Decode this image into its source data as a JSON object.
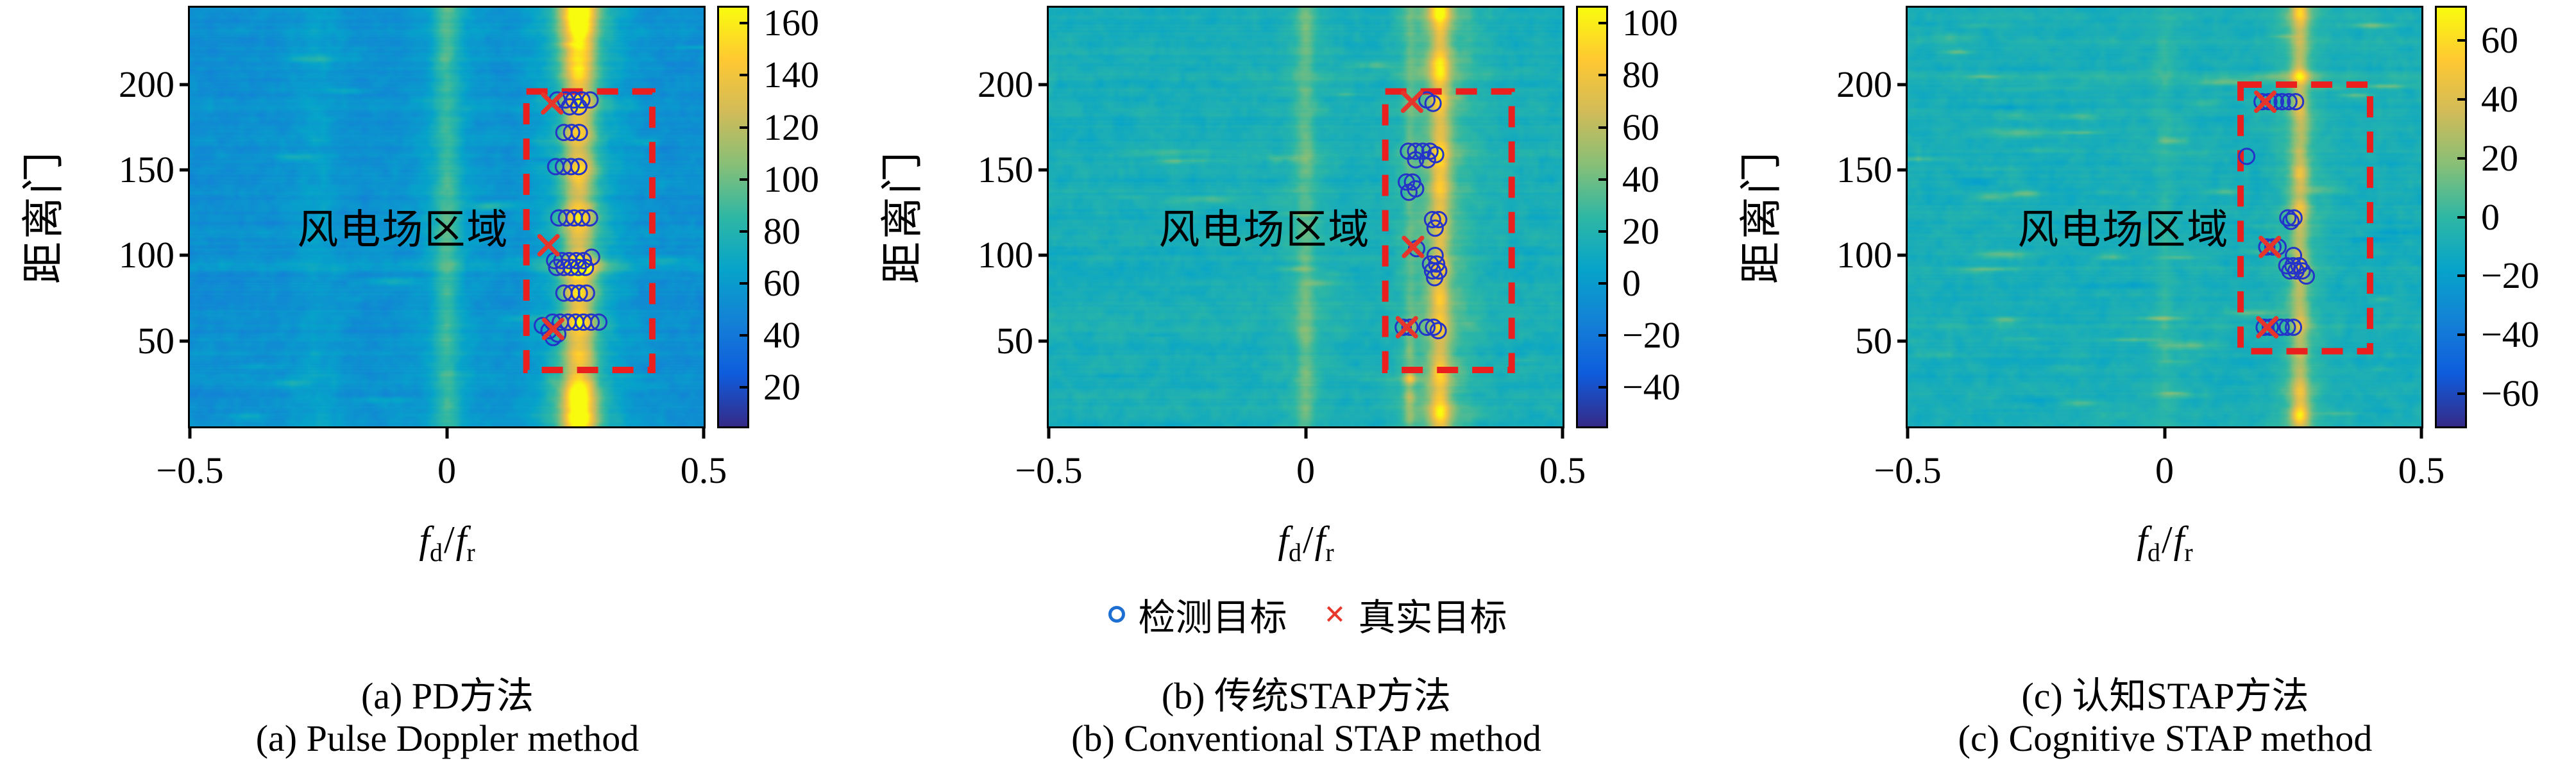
{
  "figure": {
    "ylabel": "距离门",
    "xlabel": {
      "f1": "f",
      "sub1": "d",
      "slash": "/",
      "f2": "f",
      "sub2": "r"
    }
  },
  "legend": {
    "detected_label": "检测目标",
    "true_label": "真实目标",
    "detected_color": "#1e6fd2",
    "true_color": "#e8382b"
  },
  "style": {
    "colormap": [
      "#352a87",
      "#0f5cdd",
      "#1481d6",
      "#06a4ca",
      "#2eb7a4",
      "#87bf77",
      "#d1bb59",
      "#fec832",
      "#f9fb0e"
    ],
    "circle_color": "#2434c8",
    "cross_color": "#e6352b",
    "rect_color": "#ec1f1f",
    "axis_color": "#000000"
  },
  "chart_data": [
    {
      "id": "a",
      "type": "heatmap",
      "caption_zh": "(a) PD方法",
      "caption_en": "(a) Pulse Doppler method",
      "region_label": "风电场区域",
      "region_label_pos": {
        "f": -0.085,
        "rg": 117
      },
      "xlabel": "fd/fr",
      "ylabel": "距离门",
      "xlim": [
        -0.5,
        0.5
      ],
      "ylim": [
        0,
        245
      ],
      "xticks": [
        {
          "v": -0.5,
          "label": "−0.5"
        },
        {
          "v": 0,
          "label": "0"
        },
        {
          "v": 0.5,
          "label": "0.5"
        }
      ],
      "yticks": [
        {
          "v": 200,
          "label": "200"
        },
        {
          "v": 150,
          "label": "150"
        },
        {
          "v": 100,
          "label": "100"
        },
        {
          "v": 50,
          "label": "50"
        }
      ],
      "colorbar": {
        "vmin": 5,
        "vmax": 166,
        "ticks": [
          {
            "v": 160,
            "label": "160"
          },
          {
            "v": 140,
            "label": "140"
          },
          {
            "v": 120,
            "label": "120"
          },
          {
            "v": 100,
            "label": "100"
          },
          {
            "v": 80,
            "label": "80"
          },
          {
            "v": 60,
            "label": "60"
          },
          {
            "v": 40,
            "label": "40"
          },
          {
            "v": 20,
            "label": "20"
          }
        ]
      },
      "wind_farm_rect": {
        "f": [
          0.155,
          0.4
        ],
        "rg": [
          33,
          196
        ]
      },
      "true_targets": [
        [
          0.205,
          189
        ],
        [
          0.198,
          106
        ],
        [
          0.207,
          57
        ]
      ],
      "detected_targets": [
        [
          0.215,
          191
        ],
        [
          0.231,
          191
        ],
        [
          0.247,
          191
        ],
        [
          0.263,
          191
        ],
        [
          0.279,
          191
        ],
        [
          0.239,
          187
        ],
        [
          0.257,
          187
        ],
        [
          0.228,
          172
        ],
        [
          0.243,
          172
        ],
        [
          0.258,
          172
        ],
        [
          0.212,
          152
        ],
        [
          0.227,
          152
        ],
        [
          0.242,
          152
        ],
        [
          0.257,
          152
        ],
        [
          0.218,
          122
        ],
        [
          0.233,
          122
        ],
        [
          0.248,
          122
        ],
        [
          0.263,
          122
        ],
        [
          0.278,
          122
        ],
        [
          0.21,
          97
        ],
        [
          0.224,
          97
        ],
        [
          0.238,
          97
        ],
        [
          0.252,
          97
        ],
        [
          0.266,
          97
        ],
        [
          0.282,
          99
        ],
        [
          0.214,
          93
        ],
        [
          0.228,
          93
        ],
        [
          0.242,
          93
        ],
        [
          0.256,
          93
        ],
        [
          0.27,
          93
        ],
        [
          0.228,
          78
        ],
        [
          0.243,
          78
        ],
        [
          0.258,
          78
        ],
        [
          0.272,
          78
        ],
        [
          0.186,
          59
        ],
        [
          0.206,
          61
        ],
        [
          0.221,
          61
        ],
        [
          0.236,
          61
        ],
        [
          0.251,
          61
        ],
        [
          0.266,
          61
        ],
        [
          0.281,
          61
        ],
        [
          0.296,
          61
        ],
        [
          0.199,
          56
        ],
        [
          0.207,
          52
        ],
        [
          0.216,
          54
        ]
      ],
      "texture": {
        "seed": 11,
        "vmin": 5,
        "vmax": 166,
        "background": 54,
        "row_noise": 6,
        "cell_noise": 6,
        "streaks": 36,
        "streak_amp": 16,
        "bands": [
          {
            "f": 0.258,
            "sf": 0.021,
            "gs": 0.055,
            "gf": 0.45,
            "base": 52,
            "bumps": [
              [
                243,
                42,
                7
              ],
              [
                230,
                26,
                8
              ],
              [
                215,
                14,
                6
              ],
              [
                207,
                16,
                4
              ],
              [
                190,
                26,
                5
              ],
              [
                172,
                14,
                4
              ],
              [
                150,
                18,
                5
              ],
              [
                122,
                22,
                5
              ],
              [
                93,
                60,
                4
              ],
              [
                78,
                20,
                4
              ],
              [
                60,
                26,
                5
              ],
              [
                40,
                14,
                5
              ],
              [
                18,
                40,
                6
              ],
              [
                4,
                40,
                5
              ]
            ]
          },
          {
            "f": 0.0,
            "sf": 0.018,
            "gs": 0.05,
            "gf": 0.4,
            "base": 24,
            "bumps": [
              [
                240,
                6,
                15
              ],
              [
                120,
                4,
                30
              ]
            ]
          },
          {
            "f": -0.25,
            "sf": 0.03,
            "gs": 0.06,
            "gf": 0.3,
            "base": 7,
            "bumps": []
          }
        ],
        "spots": [
          [
            0.203,
            28,
            12,
            0.01,
            3
          ]
        ],
        "row_lines": [
          [
            93,
            7
          ],
          [
            60,
            3
          ],
          [
            190,
            3
          ]
        ]
      }
    },
    {
      "id": "b",
      "type": "heatmap",
      "caption_zh": "(b) 传统STAP方法",
      "caption_en": "(b) Conventional STAP method",
      "region_label": "风电场区域",
      "region_label_pos": {
        "f": -0.08,
        "rg": 117
      },
      "xlabel": "fd/fr",
      "ylabel": "距离门",
      "xlim": [
        -0.5,
        0.5
      ],
      "ylim": [
        0,
        245
      ],
      "xticks": [
        {
          "v": -0.5,
          "label": "−0.5"
        },
        {
          "v": 0,
          "label": "0"
        },
        {
          "v": 0.5,
          "label": "0.5"
        }
      ],
      "yticks": [
        {
          "v": 200,
          "label": "200"
        },
        {
          "v": 150,
          "label": "150"
        },
        {
          "v": 100,
          "label": "100"
        },
        {
          "v": 50,
          "label": "50"
        }
      ],
      "colorbar": {
        "vmin": -55,
        "vmax": 106,
        "ticks": [
          {
            "v": 100,
            "label": "100"
          },
          {
            "v": 80,
            "label": "80"
          },
          {
            "v": 60,
            "label": "60"
          },
          {
            "v": 40,
            "label": "40"
          },
          {
            "v": 20,
            "label": "20"
          },
          {
            "v": 0,
            "label": "0"
          },
          {
            "v": -20,
            "label": "−20"
          },
          {
            "v": -40,
            "label": "−40"
          }
        ]
      },
      "wind_farm_rect": {
        "f": [
          0.155,
          0.401
        ],
        "rg": [
          33,
          196
        ]
      },
      "true_targets": [
        [
          0.207,
          190
        ],
        [
          0.209,
          105
        ],
        [
          0.197,
          58
        ]
      ],
      "detected_targets": [
        [
          0.236,
          191
        ],
        [
          0.248,
          189
        ],
        [
          0.2,
          161
        ],
        [
          0.214,
          161
        ],
        [
          0.228,
          161
        ],
        [
          0.242,
          161
        ],
        [
          0.253,
          159
        ],
        [
          0.214,
          156
        ],
        [
          0.237,
          156
        ],
        [
          0.196,
          143
        ],
        [
          0.208,
          143
        ],
        [
          0.201,
          137
        ],
        [
          0.214,
          139
        ],
        [
          0.247,
          121
        ],
        [
          0.259,
          121
        ],
        [
          0.252,
          116
        ],
        [
          0.216,
          104
        ],
        [
          0.252,
          100
        ],
        [
          0.243,
          95
        ],
        [
          0.255,
          95
        ],
        [
          0.247,
          91
        ],
        [
          0.259,
          91
        ],
        [
          0.251,
          87
        ],
        [
          0.19,
          58
        ],
        [
          0.203,
          58
        ],
        [
          0.236,
          58
        ],
        [
          0.249,
          58
        ],
        [
          0.258,
          56
        ]
      ],
      "texture": {
        "seed": 22,
        "vmin": -55,
        "vmax": 106,
        "background": 15,
        "row_noise": 5,
        "cell_noise": 6,
        "streaks": 46,
        "streak_amp": 15,
        "bands": [
          {
            "f": 0.262,
            "sf": 0.013,
            "gs": 0.045,
            "gf": 0.5,
            "base": 38,
            "bumps": [
              [
                243,
                30,
                6
              ],
              [
                210,
                22,
                6
              ],
              [
                190,
                12,
                4
              ],
              [
                160,
                16,
                5
              ],
              [
                140,
                10,
                4
              ],
              [
                120,
                9,
                4
              ],
              [
                93,
                16,
                4
              ],
              [
                75,
                8,
                4
              ],
              [
                60,
                10,
                4
              ],
              [
                30,
                14,
                5
              ],
              [
                8,
                22,
                5
              ]
            ]
          },
          {
            "f": 0.0,
            "sf": 0.012,
            "gs": 0.04,
            "gf": 0.4,
            "base": 15,
            "bumps": [
              [
                240,
                5,
                12
              ],
              [
                60,
                4,
                20
              ]
            ]
          },
          {
            "f": 0.203,
            "sf": 0.007,
            "gs": 0.02,
            "gf": 0.3,
            "base": 10,
            "bumps": [
              [
                28,
                40,
                2.5
              ],
              [
                17,
                18,
                3
              ],
              [
                45,
                8,
                4
              ],
              [
                5,
                12,
                4
              ],
              [
                58,
                10,
                3
              ]
            ]
          }
        ],
        "spots": [],
        "row_lines": [
          [
            160,
            4
          ],
          [
            58,
            3
          ],
          [
            205,
            4
          ]
        ]
      }
    },
    {
      "id": "c",
      "type": "heatmap",
      "caption_zh": "(c) 认知STAP方法",
      "caption_en": "(c) Cognitive STAP method",
      "region_label": "风电场区域",
      "region_label_pos": {
        "f": -0.08,
        "rg": 117
      },
      "xlabel": "fd/fr",
      "ylabel": "距离门",
      "xlim": [
        -0.5,
        0.5
      ],
      "ylim": [
        0,
        245
      ],
      "xticks": [
        {
          "v": -0.5,
          "label": "−0.5"
        },
        {
          "v": 0,
          "label": "0"
        },
        {
          "v": 0.5,
          "label": "0.5"
        }
      ],
      "yticks": [
        {
          "v": 200,
          "label": "200"
        },
        {
          "v": 150,
          "label": "150"
        },
        {
          "v": 100,
          "label": "100"
        },
        {
          "v": 50,
          "label": "50"
        }
      ],
      "colorbar": {
        "vmin": -71,
        "vmax": 71,
        "ticks": [
          {
            "v": 60,
            "label": "60"
          },
          {
            "v": 40,
            "label": "40"
          },
          {
            "v": 20,
            "label": "20"
          },
          {
            "v": 0,
            "label": "0"
          },
          {
            "v": -20,
            "label": "−20"
          },
          {
            "v": -40,
            "label": "−40"
          },
          {
            "v": -60,
            "label": "−60"
          }
        ]
      },
      "wind_farm_rect": {
        "f": [
          0.148,
          0.4
        ],
        "rg": [
          44,
          200
        ]
      },
      "true_targets": [
        [
          0.196,
          190
        ],
        [
          0.205,
          105
        ],
        [
          0.2,
          58
        ]
      ],
      "detected_targets": [
        [
          0.19,
          190
        ],
        [
          0.203,
          190
        ],
        [
          0.216,
          190
        ],
        [
          0.229,
          190
        ],
        [
          0.242,
          190
        ],
        [
          0.255,
          190
        ],
        [
          0.16,
          158
        ],
        [
          0.24,
          122
        ],
        [
          0.252,
          122
        ],
        [
          0.246,
          120
        ],
        [
          0.199,
          105
        ],
        [
          0.211,
          105
        ],
        [
          0.221,
          105
        ],
        [
          0.251,
          100
        ],
        [
          0.238,
          94
        ],
        [
          0.25,
          94
        ],
        [
          0.262,
          94
        ],
        [
          0.244,
          91
        ],
        [
          0.256,
          91
        ],
        [
          0.268,
          91
        ],
        [
          0.276,
          88
        ],
        [
          0.194,
          58
        ],
        [
          0.206,
          58
        ],
        [
          0.227,
          58
        ],
        [
          0.239,
          58
        ],
        [
          0.251,
          58
        ]
      ],
      "texture": {
        "seed": 33,
        "vmin": -71,
        "vmax": 71,
        "background": -9,
        "row_noise": 4,
        "cell_noise": 5,
        "streaks": 90,
        "streak_amp": 16,
        "bands": [
          {
            "f": 0.264,
            "sf": 0.011,
            "gs": 0.032,
            "gf": 0.4,
            "base": 28,
            "bumps": [
              [
                243,
                22,
                6
              ],
              [
                205,
                26,
                3
              ],
              [
                185,
                8,
                5
              ],
              [
                148,
                12,
                4
              ],
              [
                129,
                14,
                3
              ],
              [
                122,
                8,
                3
              ],
              [
                93,
                16,
                4
              ],
              [
                60,
                10,
                4
              ],
              [
                20,
                14,
                5
              ],
              [
                6,
                26,
                4
              ]
            ]
          },
          {
            "f": 0.0,
            "sf": 0.012,
            "gs": 0.04,
            "gf": 0.3,
            "base": 6,
            "bumps": []
          }
        ],
        "spots": [
          [
            0.21,
            205,
            10,
            0.03,
            2
          ]
        ],
        "row_lines": [
          [
            205,
            6
          ],
          [
            93,
            3
          ],
          [
            58,
            3
          ],
          [
            225,
            4
          ]
        ]
      }
    }
  ]
}
